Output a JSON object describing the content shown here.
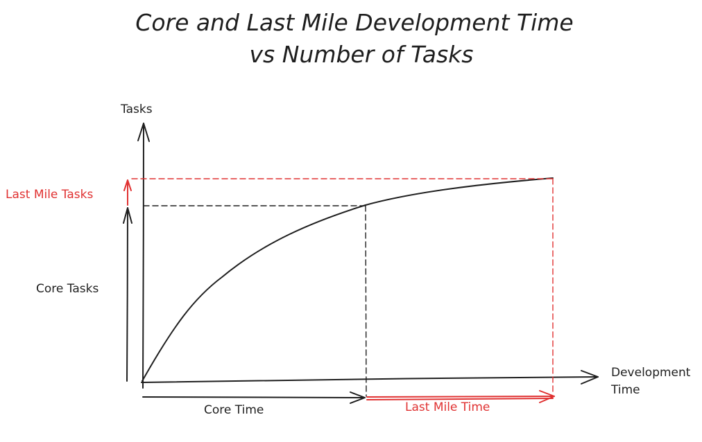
{
  "title": {
    "line1": "Core and Last Mile Development Time",
    "line2": "vs Number of Tasks"
  },
  "axes": {
    "y_label": "Tasks",
    "x_label_line1": "Development",
    "x_label_line2": "Time"
  },
  "annotations": {
    "last_mile_tasks": "Last Mile Tasks",
    "core_tasks": "Core Tasks",
    "core_time": "Core Time",
    "last_mile_time": "Last Mile Time"
  },
  "colors": {
    "ink": "#1e1e1e",
    "accent": "#e03131"
  }
}
